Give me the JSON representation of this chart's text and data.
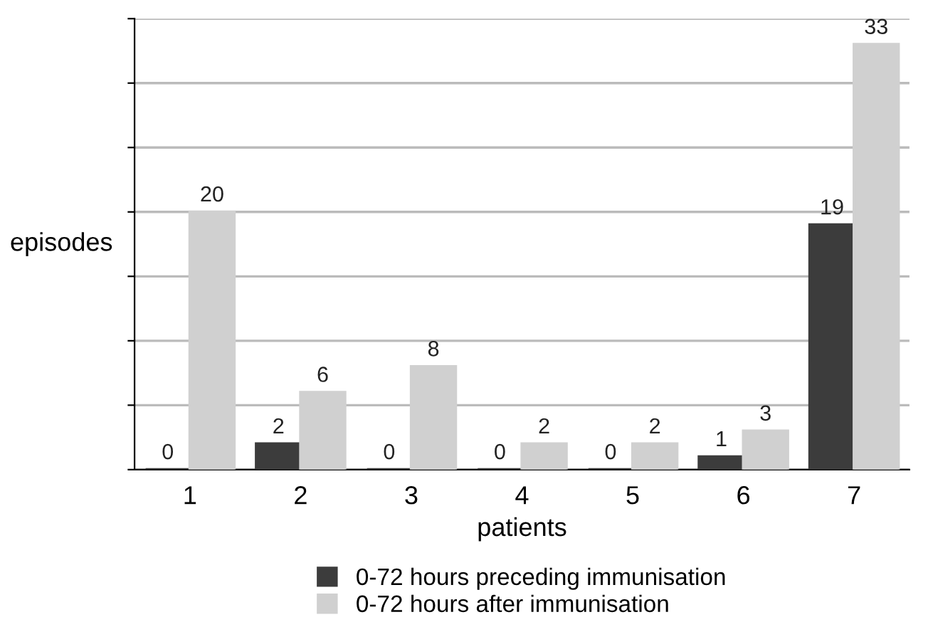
{
  "chart_data": {
    "type": "bar",
    "xlabel": "patients",
    "ylabel": "episodes",
    "categories": [
      "1",
      "2",
      "3",
      "4",
      "5",
      "6",
      "7"
    ],
    "series": [
      {
        "name": "0-72 hours preceding immunisation",
        "color": "#3c3c3c",
        "values": [
          0,
          2,
          0,
          0,
          0,
          1,
          19
        ]
      },
      {
        "name": "0-72 hours after immunisation",
        "color": "#d0d0d0",
        "values": [
          20,
          6,
          8,
          2,
          2,
          3,
          33
        ]
      }
    ],
    "ylim": [
      0,
      35
    ],
    "yticks": [
      {
        "value": 0,
        "label": null
      },
      {
        "value": 5,
        "label": null
      },
      {
        "value": 10,
        "label": null
      },
      {
        "value": 15,
        "label": null
      },
      {
        "value": 20,
        "label": null
      },
      {
        "value": 25,
        "label": null
      },
      {
        "value": 30,
        "label": null
      },
      {
        "value": 35,
        "label": null
      }
    ],
    "grid": "y",
    "legend": "bottom",
    "data_labels": true
  }
}
